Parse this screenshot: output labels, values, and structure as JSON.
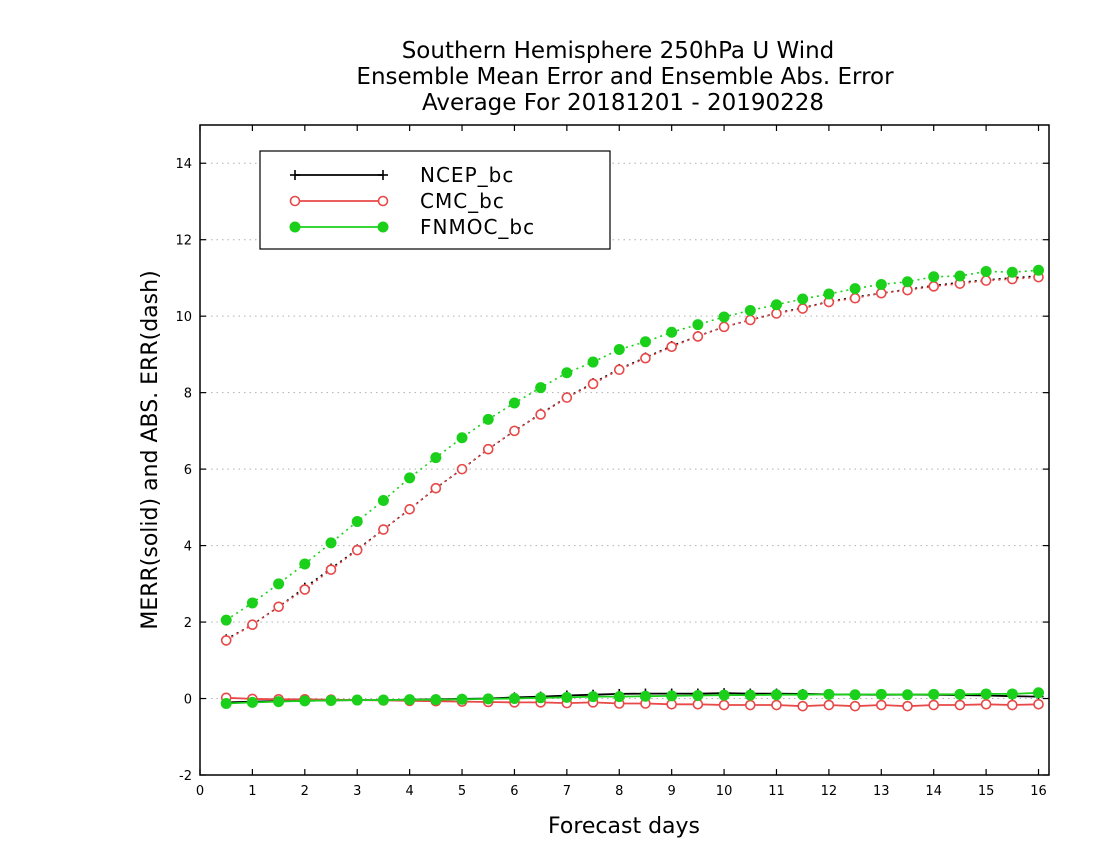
{
  "chart_data": {
    "type": "line",
    "title": [
      "Southern Hemisphere 250hPa U Wind",
      "Ensemble Mean Error and Ensemble Abs. Error",
      "Average For 20181201 - 20190228"
    ],
    "xlabel": "Forecast days",
    "ylabel": "MERR(solid) and ABS. ERR(dash)",
    "xlim": [
      0,
      16.2
    ],
    "ylim": [
      -2,
      15
    ],
    "xticks": [
      "0",
      "1",
      "2",
      "3",
      "4",
      "5",
      "6",
      "7",
      "8",
      "9",
      "10",
      "11",
      "12",
      "13",
      "14",
      "15",
      "16"
    ],
    "yticks": [
      "-2",
      "0",
      "2",
      "4",
      "6",
      "8",
      "10",
      "12",
      "14"
    ],
    "grid": "horizontal dotted",
    "legend_position": "top-left",
    "x": [
      0.5,
      1,
      1.5,
      2,
      2.5,
      3,
      3.5,
      4,
      4.5,
      5,
      5.5,
      6,
      6.5,
      7,
      7.5,
      8,
      8.5,
      9,
      9.5,
      10,
      10.5,
      11,
      11.5,
      12,
      12.5,
      13,
      13.5,
      14,
      14.5,
      15,
      15.5,
      16
    ],
    "series": [
      {
        "name": "NCEP_bc",
        "color": "#000000",
        "marker": "plus",
        "merr": [
          -0.1,
          -0.08,
          -0.07,
          -0.06,
          -0.05,
          -0.04,
          -0.04,
          -0.03,
          -0.02,
          -0.01,
          0.0,
          0.03,
          0.05,
          0.08,
          0.1,
          0.12,
          0.13,
          0.13,
          0.13,
          0.14,
          0.13,
          0.13,
          0.12,
          0.11,
          0.1,
          0.1,
          0.1,
          0.1,
          0.09,
          0.08,
          0.06,
          0.05
        ],
        "abs_err": [
          1.55,
          1.93,
          2.4,
          2.9,
          3.4,
          3.9,
          4.42,
          4.95,
          5.5,
          6.0,
          6.52,
          7.0,
          7.45,
          7.88,
          8.25,
          8.62,
          8.92,
          9.22,
          9.48,
          9.72,
          9.9,
          10.08,
          10.22,
          10.38,
          10.5,
          10.6,
          10.7,
          10.8,
          10.88,
          10.95,
          11.0,
          11.05
        ]
      },
      {
        "name": "CMC_bc",
        "color": "#e84848",
        "marker": "open-circle",
        "merr": [
          0.02,
          -0.01,
          -0.02,
          -0.02,
          -0.03,
          -0.04,
          -0.05,
          -0.06,
          -0.07,
          -0.08,
          -0.09,
          -0.1,
          -0.1,
          -0.12,
          -0.1,
          -0.13,
          -0.13,
          -0.15,
          -0.15,
          -0.17,
          -0.17,
          -0.17,
          -0.2,
          -0.17,
          -0.2,
          -0.17,
          -0.2,
          -0.17,
          -0.17,
          -0.15,
          -0.17,
          -0.15
        ],
        "abs_err": [
          1.52,
          1.93,
          2.4,
          2.85,
          3.37,
          3.88,
          4.42,
          4.95,
          5.5,
          6.0,
          6.52,
          7.0,
          7.43,
          7.87,
          8.23,
          8.6,
          8.9,
          9.2,
          9.47,
          9.72,
          9.9,
          10.07,
          10.2,
          10.37,
          10.47,
          10.6,
          10.68,
          10.78,
          10.85,
          10.93,
          10.97,
          11.02
        ]
      },
      {
        "name": "FNMOC_bc",
        "color": "#1ad01a",
        "marker": "filled-circle",
        "merr": [
          -0.13,
          -0.1,
          -0.08,
          -0.06,
          -0.05,
          -0.04,
          -0.04,
          -0.03,
          -0.03,
          -0.02,
          -0.01,
          0.0,
          0.02,
          0.03,
          0.05,
          0.05,
          0.06,
          0.07,
          0.08,
          0.09,
          0.09,
          0.1,
          0.1,
          0.11,
          0.1,
          0.11,
          0.1,
          0.11,
          0.11,
          0.12,
          0.12,
          0.15
        ],
        "abs_err": [
          2.05,
          2.5,
          3.0,
          3.52,
          4.07,
          4.63,
          5.18,
          5.77,
          6.3,
          6.82,
          7.3,
          7.73,
          8.13,
          8.52,
          8.8,
          9.13,
          9.33,
          9.58,
          9.78,
          9.98,
          10.15,
          10.3,
          10.45,
          10.58,
          10.72,
          10.83,
          10.9,
          11.03,
          11.05,
          11.17,
          11.15,
          11.2
        ]
      }
    ]
  }
}
